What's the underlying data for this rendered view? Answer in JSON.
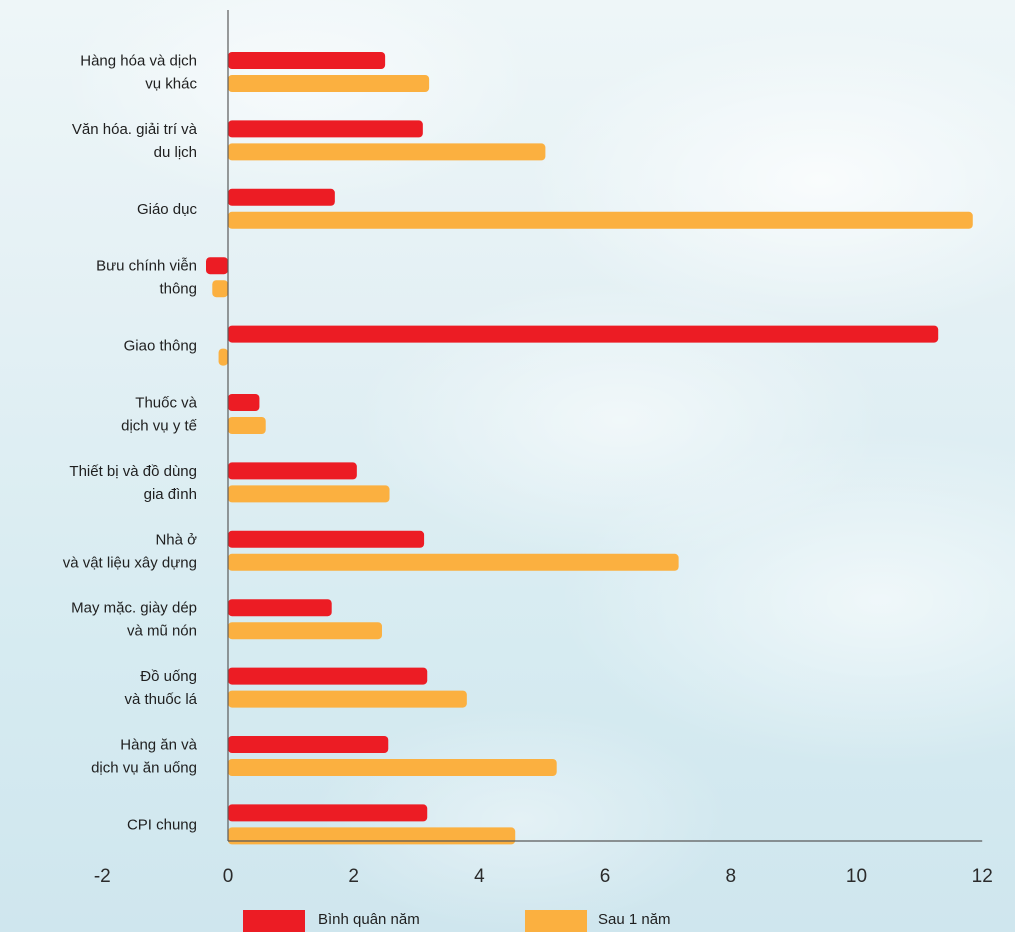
{
  "chart_data": {
    "type": "bar",
    "orientation": "horizontal",
    "categories": [
      [
        "Hàng hóa và dịch",
        "vụ khác"
      ],
      [
        "Văn hóa. giải trí và",
        "du lịch"
      ],
      [
        "Giáo dục"
      ],
      [
        "Bưu chính viễn",
        "thông"
      ],
      [
        "Giao thông"
      ],
      [
        "Thuốc và",
        "dịch vụ y tế"
      ],
      [
        "Thiết bị và đồ dùng",
        "gia đình"
      ],
      [
        "Nhà ở",
        "và vật liệu xây dựng"
      ],
      [
        "May mặc. giày dép",
        "và mũ nón"
      ],
      [
        "Đồ uống",
        "và thuốc lá"
      ],
      [
        "Hàng ăn và",
        "dịch vụ ăn uống"
      ],
      [
        "CPI chung"
      ]
    ],
    "series": [
      {
        "name": "Bình quân năm",
        "color": "#ec1c24",
        "values": [
          2.5,
          3.1,
          1.7,
          -0.35,
          11.3,
          0.5,
          2.05,
          3.12,
          1.65,
          3.17,
          2.55,
          3.17
        ]
      },
      {
        "name": "Sau 1 năm",
        "color": "#fbb040",
        "values": [
          3.2,
          5.05,
          11.85,
          -0.25,
          -0.15,
          0.6,
          2.57,
          7.17,
          2.45,
          3.8,
          5.23,
          4.57
        ]
      }
    ],
    "xlim": [
      -2,
      12
    ],
    "xticks": [
      -2,
      0,
      2,
      4,
      6,
      8,
      10,
      12
    ],
    "legend_position": "bottom"
  }
}
